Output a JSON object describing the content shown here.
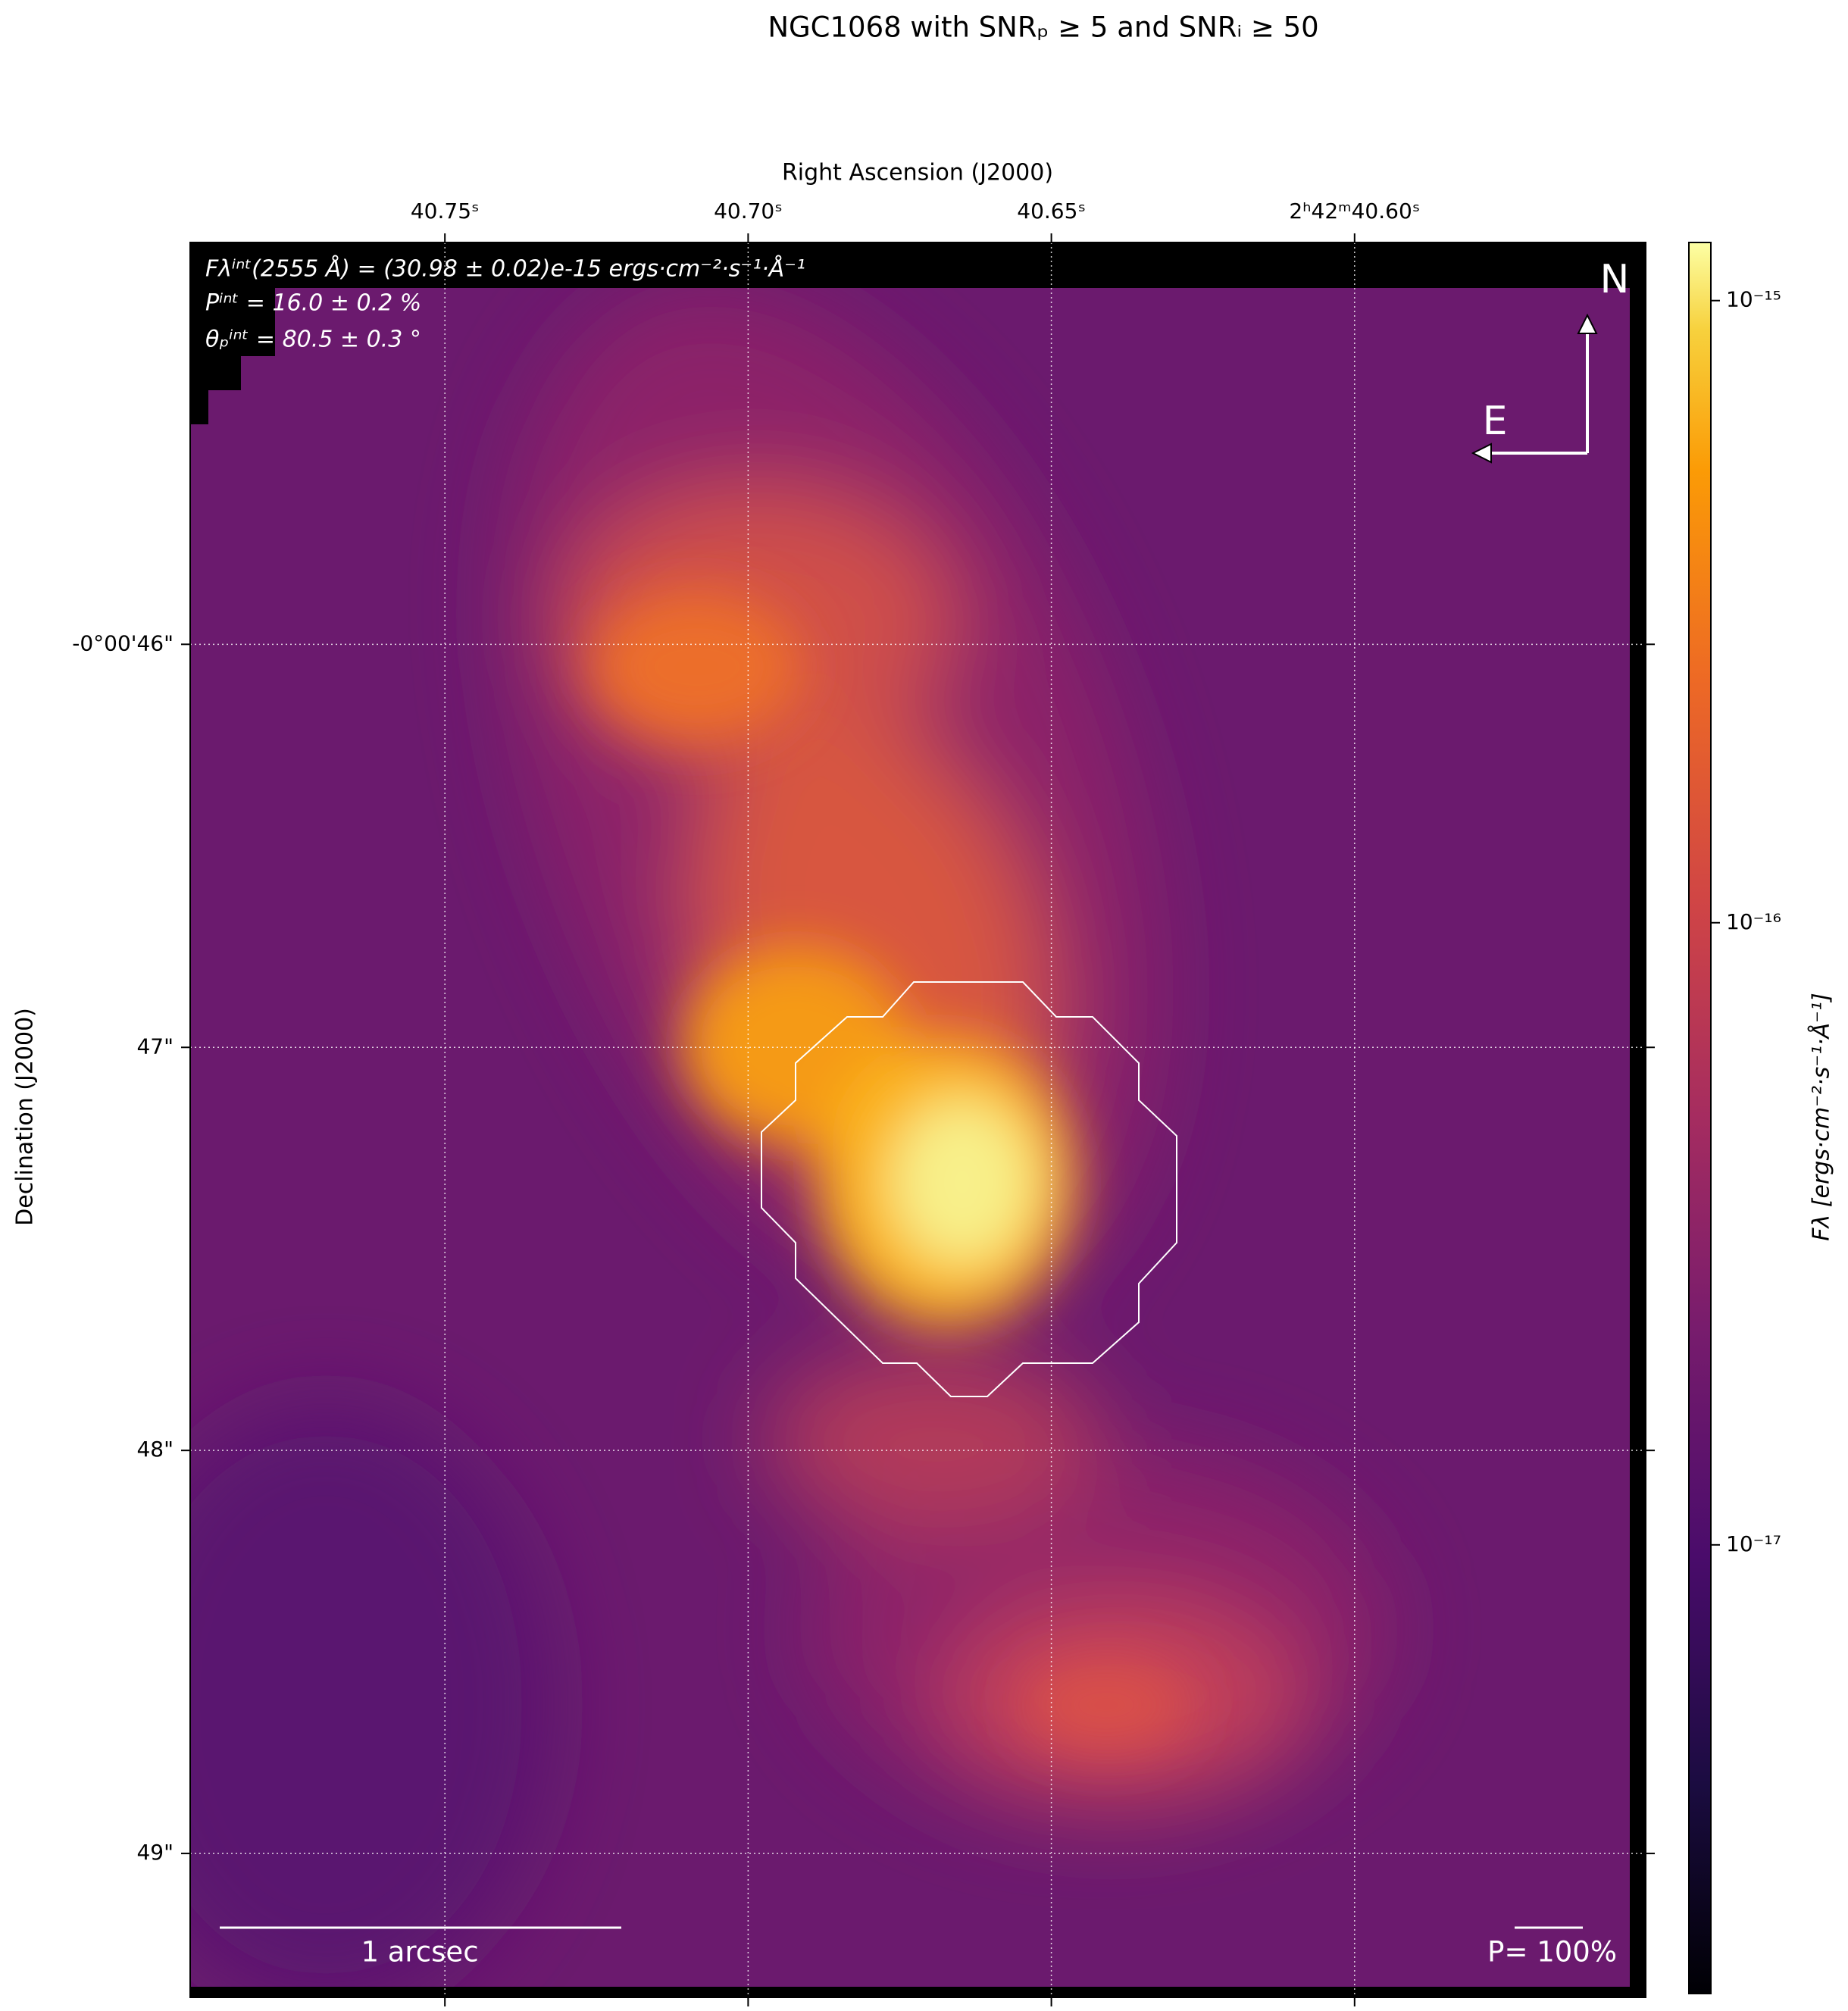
{
  "chart_data": {
    "type": "image",
    "title": "NGC1068 with SNRₚ ≥ 5 and SNRᵢ ≥ 50",
    "xlabel": "Right Ascension (J2000)",
    "ylabel": "Declination (J2000)",
    "xlim": [
      40.792,
      40.552
    ],
    "xticks": [
      {
        "value": 40.75,
        "label": "40.75ˢ"
      },
      {
        "value": 40.7,
        "label": "40.70ˢ"
      },
      {
        "value": 40.65,
        "label": "40.65ˢ"
      },
      {
        "value": 40.6,
        "label": "2ʰ42ᵐ40.60ˢ"
      }
    ],
    "ylim": [
      49.357,
      45.003
    ],
    "yticks": [
      {
        "value": 46,
        "label": "-0°00'46\""
      },
      {
        "value": 47,
        "label": "47\""
      },
      {
        "value": 48,
        "label": "48\""
      },
      {
        "value": 49,
        "label": "49\""
      }
    ],
    "grid": true,
    "colorbar": {
      "label": "Fλ [ergs·cm⁻²·s⁻¹·Å⁻¹]",
      "log": true,
      "lim": [
        1.9e-18,
        1.24e-15
      ],
      "ticks": [
        {
          "value": 1e-15,
          "label": "10⁻¹⁵"
        },
        {
          "value": 1e-16,
          "label": "10⁻¹⁶"
        },
        {
          "value": 1e-17,
          "label": "10⁻¹⁷"
        }
      ]
    },
    "annotations": [
      "Fλⁱⁿᵗ(2555 Å) = (30.98 ± 0.02)e-15 ergs·cm⁻²·s⁻¹·Å⁻¹",
      "Pⁱⁿᵗ = 16.0 ± 0.2 %",
      "θₚⁱⁿᵗ = 80.5 ± 0.3 °"
    ],
    "scale_bar_label": "1 arcsec",
    "vector_scale_label": "P= 100%",
    "compass": {
      "north": "N",
      "east": "E"
    }
  }
}
